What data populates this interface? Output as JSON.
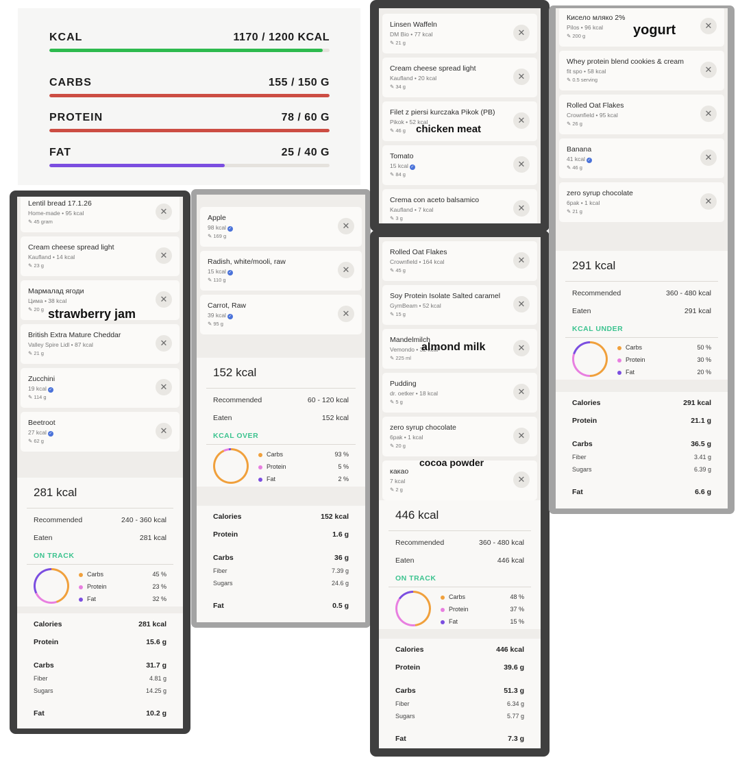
{
  "summary": {
    "macros": [
      {
        "name": "KCAL",
        "value": "1170 / 1200 KCAL",
        "progress": 0.975,
        "color": "#2dba4e"
      },
      {
        "name": "CARBS",
        "value": "155 / 150 G",
        "progress": 1.0,
        "color": "#cc4d43"
      },
      {
        "name": "PROTEIN",
        "value": "78 / 60 G",
        "progress": 1.0,
        "color": "#cc4d43"
      },
      {
        "name": "FAT",
        "value": "25 / 40 G",
        "progress": 0.625,
        "color": "#7b4ee0"
      }
    ]
  },
  "colors": {
    "carbs": "#f0a03c",
    "protein": "#e87fe0",
    "fat": "#7b4ee0",
    "status": "#3cc38f",
    "verified": "#4a72d9"
  },
  "icons": {
    "remove": "close-icon",
    "verified": "check-badge-icon",
    "quantity": "pencil-icon"
  },
  "meals": [
    {
      "foods": [
        {
          "name": "Lentil bread 17.1.26",
          "sub": "Home-made • 95 kcal",
          "qty": "45 gram"
        },
        {
          "name": "Cream cheese spread light",
          "sub": "Kaufland • 14 kcal",
          "qty": "23 g"
        },
        {
          "name": "Мармалад ягоди",
          "sub": "Цима • 38 kcal",
          "qty": "20 g"
        },
        {
          "name": "British Extra Mature Cheddar",
          "sub": "Valley Spire Lidl • 87 kcal",
          "qty": "21 g"
        },
        {
          "name": "Zucchini",
          "sub": "19 kcal",
          "qty": "114 g",
          "verified": true
        },
        {
          "name": "Beetroot",
          "sub": "27 kcal",
          "qty": "62 g",
          "verified": true
        }
      ],
      "total": "281 kcal",
      "recommended_label": "Recommended",
      "recommended": "240 - 360 kcal",
      "eaten_label": "Eaten",
      "eaten": "281 kcal",
      "status": "ON TRACK",
      "breakdown": [
        {
          "name": "Carbs",
          "pct": "45 %",
          "share": 45
        },
        {
          "name": "Protein",
          "pct": "23 %",
          "share": 23
        },
        {
          "name": "Fat",
          "pct": "32 %",
          "share": 32
        }
      ],
      "nutrition": [
        {
          "label": "Calories",
          "value": "281 kcal",
          "kind": "main"
        },
        {
          "label": "Protein",
          "value": "15.6 g",
          "kind": "main"
        },
        {
          "label": "Carbs",
          "value": "31.7 g",
          "kind": "main"
        },
        {
          "label": "Fiber",
          "value": "4.81 g",
          "kind": "sub"
        },
        {
          "label": "Sugars",
          "value": "14.25 g",
          "kind": "sub"
        },
        {
          "label": "Fat",
          "value": "10.2 g",
          "kind": "main"
        }
      ]
    },
    {
      "foods": [
        {
          "name": "Apple",
          "sub": "98 kcal",
          "qty": "169 g",
          "verified": true
        },
        {
          "name": "Radish, white/mooli, raw",
          "sub": "15 kcal",
          "qty": "110 g",
          "verified": true
        },
        {
          "name": "Carrot, Raw",
          "sub": "39 kcal",
          "qty": "95 g",
          "verified": true
        }
      ],
      "total": "152 kcal",
      "recommended_label": "Recommended",
      "recommended": "60 - 120 kcal",
      "eaten_label": "Eaten",
      "eaten": "152 kcal",
      "status": "KCAL OVER",
      "breakdown": [
        {
          "name": "Carbs",
          "pct": "93 %",
          "share": 93
        },
        {
          "name": "Protein",
          "pct": "5 %",
          "share": 5
        },
        {
          "name": "Fat",
          "pct": "2 %",
          "share": 2
        }
      ],
      "nutrition": [
        {
          "label": "Calories",
          "value": "152 kcal",
          "kind": "main"
        },
        {
          "label": "Protein",
          "value": "1.6 g",
          "kind": "main"
        },
        {
          "label": "Carbs",
          "value": "36 g",
          "kind": "main"
        },
        {
          "label": "Fiber",
          "value": "7.39 g",
          "kind": "sub"
        },
        {
          "label": "Sugars",
          "value": "24.6 g",
          "kind": "sub"
        },
        {
          "label": "Fat",
          "value": "0.5 g",
          "kind": "main"
        }
      ]
    },
    {
      "foods": [
        {
          "name": "Linsen  Waffeln",
          "sub": "DM Bio • 77 kcal",
          "qty": "21 g"
        },
        {
          "name": "Cream cheese spread light",
          "sub": "Kaufland • 20 kcal",
          "qty": "34 g"
        },
        {
          "name": "Filet z piersi kurczaka Pikok (PB)",
          "sub": "Pikok • 52 kcal",
          "qty": "46 g"
        },
        {
          "name": "Tomato",
          "sub": "15 kcal",
          "qty": "84 g",
          "verified": true
        },
        {
          "name": "Crema con aceto balsamico",
          "sub": "Kaufland • 7 kcal",
          "qty": "3 g"
        }
      ]
    },
    {
      "foods": [
        {
          "name": "Rolled Oat Flakes",
          "sub": "Crownfield • 164 kcal",
          "qty": "45 g"
        },
        {
          "name": "Soy Protein Isolate Salted caramel",
          "sub": "GymBeam • 52 kcal",
          "qty": "15 g"
        },
        {
          "name": "Mandelmilch",
          "sub": "Vemondo • 32 kcal",
          "qty": "225 ml"
        },
        {
          "name": "Pudding",
          "sub": "dr. oetker • 18 kcal",
          "qty": "5 g"
        },
        {
          "name": "zero syrup chocolate",
          "sub": "6pak • 1 kcal",
          "qty": "20 g"
        },
        {
          "name": "какао",
          "sub": "7 kcal",
          "qty": "2 g"
        }
      ],
      "total": "446 kcal",
      "recommended_label": "Recommended",
      "recommended": "360 - 480 kcal",
      "eaten_label": "Eaten",
      "eaten": "446 kcal",
      "status": "ON TRACK",
      "breakdown": [
        {
          "name": "Carbs",
          "pct": "48 %",
          "share": 48
        },
        {
          "name": "Protein",
          "pct": "37 %",
          "share": 37
        },
        {
          "name": "Fat",
          "pct": "15 %",
          "share": 15
        }
      ],
      "nutrition": [
        {
          "label": "Calories",
          "value": "446 kcal",
          "kind": "main"
        },
        {
          "label": "Protein",
          "value": "39.6 g",
          "kind": "main"
        },
        {
          "label": "Carbs",
          "value": "51.3 g",
          "kind": "main"
        },
        {
          "label": "Fiber",
          "value": "6.34 g",
          "kind": "sub"
        },
        {
          "label": "Sugars",
          "value": "5.77 g",
          "kind": "sub"
        },
        {
          "label": "Fat",
          "value": "7.3 g",
          "kind": "main"
        }
      ]
    },
    {
      "foods": [
        {
          "name": "Кисело мляко  2%",
          "sub": "Pilos • 96 kcal",
          "qty": "200 g"
        },
        {
          "name": "Whey protein blend cookies & cream",
          "sub": "fit spo • 58 kcal",
          "qty": "0.5 serving"
        },
        {
          "name": "Rolled Oat Flakes",
          "sub": "Crownfield • 95 kcal",
          "qty": "26 g"
        },
        {
          "name": "Banana",
          "sub": "41 kcal",
          "qty": "46 g",
          "verified": true
        },
        {
          "name": "zero syrup chocolate",
          "sub": "6pak • 1 kcal",
          "qty": "21 g"
        }
      ],
      "total": "291 kcal",
      "recommended_label": "Recommended",
      "recommended": "360 - 480 kcal",
      "eaten_label": "Eaten",
      "eaten": "291 kcal",
      "status": "KCAL UNDER",
      "breakdown": [
        {
          "name": "Carbs",
          "pct": "50 %",
          "share": 50
        },
        {
          "name": "Protein",
          "pct": "30 %",
          "share": 30
        },
        {
          "name": "Fat",
          "pct": "20 %",
          "share": 20
        }
      ],
      "nutrition": [
        {
          "label": "Calories",
          "value": "291 kcal",
          "kind": "main"
        },
        {
          "label": "Protein",
          "value": "21.1 g",
          "kind": "main"
        },
        {
          "label": "Carbs",
          "value": "36.5 g",
          "kind": "main"
        },
        {
          "label": "Fiber",
          "value": "3.41 g",
          "kind": "sub"
        },
        {
          "label": "Sugars",
          "value": "6.39 g",
          "kind": "sub"
        },
        {
          "label": "Fat",
          "value": "6.6 g",
          "kind": "main"
        }
      ]
    }
  ],
  "annotations": [
    "strawberry jam",
    "chicken meat",
    "almond milk",
    "cocoa powder",
    "yogurt"
  ]
}
